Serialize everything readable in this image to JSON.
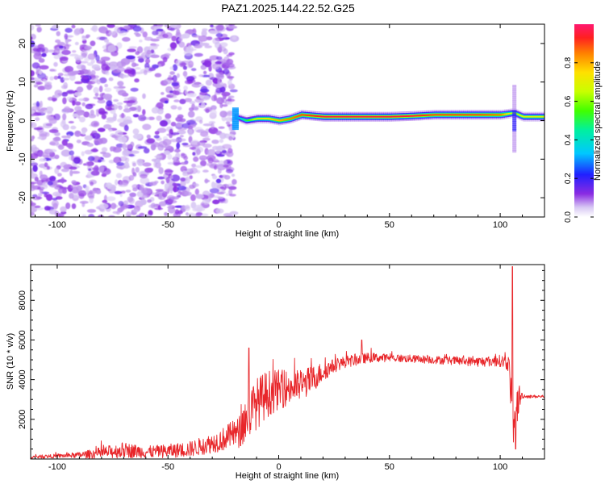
{
  "title": "PAZ1.2025.144.22.52.G25",
  "chart_data": [
    {
      "type": "heatmap",
      "xlabel": "Height of straight line (km)",
      "ylabel": "Frequency (Hz)",
      "xlim": [
        -112,
        120
      ],
      "ylim": [
        -25,
        25
      ],
      "xticks": [
        -100,
        -50,
        0,
        50,
        100
      ],
      "yticks": [
        -20,
        -10,
        0,
        10,
        20
      ],
      "colorbar": {
        "label": "Normalized spectral amplitude",
        "range": [
          0,
          1
        ],
        "ticks": [
          "0.0",
          "0.2",
          "0.4",
          "0.6",
          "0.8"
        ]
      },
      "noise_region_x": [
        -112,
        -20
      ],
      "signal_ridge": {
        "x": [
          -20,
          -15,
          -10,
          -5,
          0,
          5,
          10,
          20,
          30,
          40,
          50,
          60,
          70,
          80,
          90,
          100,
          106,
          110,
          120
        ],
        "frequency": [
          1.0,
          0.0,
          0.5,
          0.5,
          0.0,
          0.5,
          1.5,
          1.0,
          1.0,
          1.0,
          1.0,
          1.2,
          1.5,
          1.5,
          1.5,
          1.5,
          2.0,
          1.0,
          1.0
        ],
        "amplitude": [
          0.3,
          0.5,
          0.7,
          0.75,
          0.8,
          0.85,
          0.9,
          0.95,
          0.95,
          0.95,
          0.95,
          0.95,
          0.9,
          0.9,
          0.9,
          0.85,
          0.6,
          0.7,
          0.7
        ]
      }
    },
    {
      "type": "line",
      "xlabel": "Height of straight line (km)",
      "ylabel": "SNR (10 * v/v)",
      "xlim": [
        -112,
        120
      ],
      "ylim": [
        0,
        9800
      ],
      "xticks": [
        -100,
        -50,
        0,
        50,
        100
      ],
      "yticks": [
        2000,
        4000,
        6000,
        8000
      ],
      "color": "#e8262a",
      "envelope": {
        "x": [
          -112,
          -100,
          -90,
          -80,
          -70,
          -60,
          -50,
          -40,
          -30,
          -25,
          -20,
          -18,
          -15,
          -10,
          -5,
          0,
          5,
          10,
          15,
          20,
          25,
          30,
          35,
          40,
          50,
          60,
          70,
          80,
          90,
          100,
          104,
          105,
          106,
          108,
          110,
          112,
          120
        ],
        "base": [
          100,
          150,
          200,
          300,
          450,
          350,
          400,
          500,
          800,
          1000,
          1300,
          1300,
          2000,
          2800,
          3300,
          3500,
          3600,
          3700,
          4000,
          4400,
          4700,
          4900,
          5000,
          5100,
          5100,
          5050,
          5000,
          4950,
          4900,
          4950,
          4800,
          3000,
          1000,
          3000,
          3200,
          3150,
          3150
        ],
        "noise": [
          80,
          100,
          150,
          300,
          400,
          300,
          350,
          400,
          500,
          600,
          700,
          800,
          1200,
          1300,
          1200,
          1000,
          900,
          800,
          700,
          500,
          350,
          300,
          300,
          250,
          200,
          200,
          200,
          220,
          250,
          300,
          400,
          1200,
          800,
          1000,
          150,
          80,
          80
        ]
      },
      "peaks": [
        {
          "x": -13.5,
          "y": 5600
        },
        {
          "x": 37.5,
          "y": 6000
        },
        {
          "x": 105.5,
          "y": 9700
        },
        {
          "x": 107,
          "y": 500
        }
      ]
    }
  ]
}
